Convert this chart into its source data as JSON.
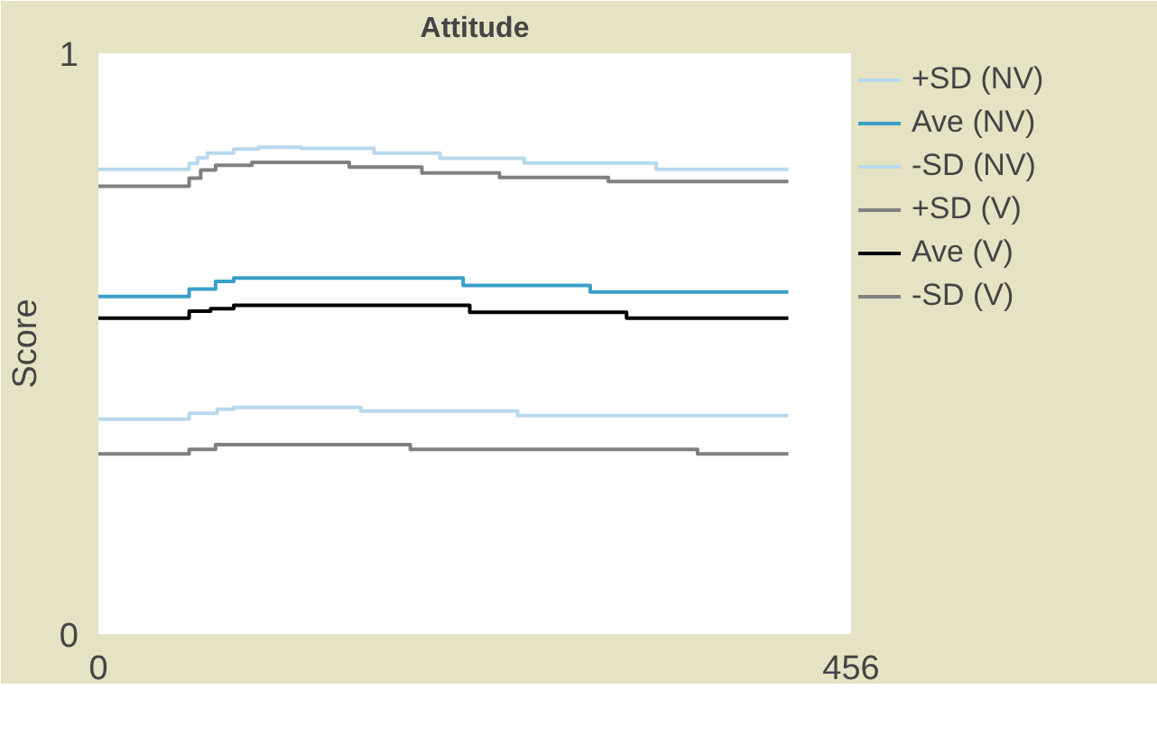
{
  "chart_data": {
    "type": "step",
    "title": "Attitude",
    "ylabel": "Score",
    "xlim": [
      0,
      456
    ],
    "ylim": [
      0,
      1
    ],
    "xticks": [
      0,
      456
    ],
    "yticks": [
      0,
      1
    ],
    "legend": "right",
    "line_style": "solid",
    "series": [
      {
        "name": "+SD (NV)",
        "color": "#b8d9ec",
        "x": [
          0,
          55,
          60,
          66,
          82,
          97,
          123,
          167,
          207,
          258,
          338,
          418
        ],
        "values": [
          0.8,
          0.81,
          0.82,
          0.828,
          0.835,
          0.838,
          0.836,
          0.828,
          0.819,
          0.811,
          0.8,
          0.8
        ]
      },
      {
        "name": "Ave (NV)",
        "color": "#3a9fc9",
        "x": [
          0,
          55,
          71,
          82,
          221,
          298,
          418
        ],
        "values": [
          0.581,
          0.594,
          0.607,
          0.613,
          0.6,
          0.589,
          0.589
        ]
      },
      {
        "name": "-SD (NV)",
        "color": "#b8d9ec",
        "x": [
          0,
          55,
          72,
          82,
          159,
          254,
          418
        ],
        "values": [
          0.37,
          0.38,
          0.387,
          0.39,
          0.384,
          0.376,
          0.376
        ]
      },
      {
        "name": "+SD (V)",
        "color": "#808080",
        "x": [
          0,
          55,
          62,
          71,
          93,
          152,
          196,
          243,
          309,
          418
        ],
        "values": [
          0.771,
          0.785,
          0.799,
          0.807,
          0.812,
          0.804,
          0.794,
          0.786,
          0.779,
          0.779
        ]
      },
      {
        "name": "Ave (V)",
        "color": "#000000",
        "x": [
          0,
          55,
          68,
          82,
          225,
          320,
          418
        ],
        "values": [
          0.544,
          0.556,
          0.56,
          0.566,
          0.554,
          0.544,
          0.544
        ]
      },
      {
        "name": "-SD (V)",
        "color": "#808080",
        "x": [
          0,
          55,
          71,
          189,
          363,
          418
        ],
        "values": [
          0.31,
          0.318,
          0.326,
          0.318,
          0.31,
          0.31
        ]
      }
    ]
  }
}
